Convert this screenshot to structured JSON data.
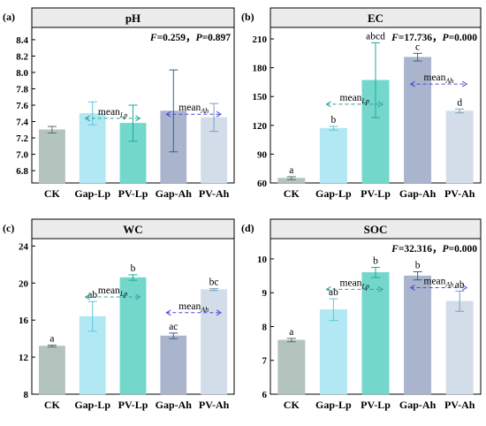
{
  "colors": {
    "CK": "#b3c3bd",
    "Gap-Lp": "#b1e8f3",
    "PV-Lp": "#73d7cb",
    "Gap-Ah": "#aab5cd",
    "PV-Ah": "#d3dde9",
    "err_CK": "#55706c",
    "err_Gap-Lp": "#5cc9dc",
    "err_PV-Lp": "#1dab9b",
    "err_Gap-Ah": "#3d5f8c",
    "err_PV-Ah": "#7c9fbc",
    "title_bar": "#ececec",
    "mean_Lp": "#2aa39a",
    "mean_Ah": "#4a4ad6"
  },
  "chart_data": [
    {
      "panel": "(a)",
      "type": "bar",
      "title": "pH",
      "categories": [
        "CK",
        "Gap-Lp",
        "PV-Lp",
        "Gap-Ah",
        "PV-Ah"
      ],
      "values": [
        7.3,
        7.5,
        7.38,
        7.53,
        7.45
      ],
      "errors": [
        0.04,
        0.14,
        0.22,
        0.5,
        0.17
      ],
      "letters": [
        "",
        "",
        "",
        "",
        ""
      ],
      "stat_F": "F",
      "stat_Fval": "=0.259，",
      "stat_P": "P",
      "stat_Pval": "=0.897",
      "mean_Lp": 7.44,
      "mean_Ah": 7.49,
      "ylim": [
        6.65,
        8.55
      ],
      "yticks": [
        6.8,
        7.0,
        7.2,
        7.4,
        7.6,
        7.8,
        8.0,
        8.2,
        8.4
      ],
      "ytick_labels": [
        "6.8",
        "7.0",
        "7.2",
        "7.4",
        "7.6",
        "7.8",
        "8.0",
        "8.2",
        "8.4"
      ]
    },
    {
      "panel": "(b)",
      "type": "bar",
      "title": "EC",
      "categories": [
        "CK",
        "Gap-Lp",
        "PV-Lp",
        "Gap-Ah",
        "PV-Ah"
      ],
      "values": [
        65,
        117,
        167,
        191,
        135
      ],
      "errors": [
        1.5,
        2,
        39,
        4,
        2
      ],
      "letters": [
        "a",
        "b",
        "abcd",
        "c",
        "d"
      ],
      "stat_F": "F",
      "stat_Fval": "=17.736，",
      "stat_P": "P",
      "stat_Pval": "=0.000",
      "mean_Lp": 142,
      "mean_Ah": 163,
      "ylim": [
        60,
        222
      ],
      "yticks": [
        60,
        90,
        120,
        150,
        180,
        210
      ],
      "ytick_labels": [
        "60",
        "90",
        "120",
        "150",
        "180",
        "210"
      ]
    },
    {
      "panel": "(c)",
      "type": "bar",
      "title": "WC",
      "categories": [
        "CK",
        "Gap-Lp",
        "PV-Lp",
        "Gap-Ah",
        "PV-Ah"
      ],
      "values": [
        13.2,
        16.4,
        20.6,
        14.3,
        19.3
      ],
      "errors": [
        0.1,
        1.6,
        0.3,
        0.3,
        0.1
      ],
      "letters": [
        "a",
        "ab",
        "b",
        "ac",
        "bc"
      ],
      "stat_F": "",
      "stat_Fval": "",
      "stat_P": "",
      "stat_Pval": "",
      "mean_Lp": 18.5,
      "mean_Ah": 16.8,
      "ylim": [
        8,
        24.8
      ],
      "yticks": [
        8,
        12,
        16,
        20,
        24
      ],
      "ytick_labels": [
        "8",
        "12",
        "16",
        "20",
        "24"
      ]
    },
    {
      "panel": "(d)",
      "type": "bar",
      "title": "SOC",
      "categories": [
        "CK",
        "Gap-Lp",
        "PV-Lp",
        "Gap-Ah",
        "PV-Ah"
      ],
      "values": [
        7.6,
        8.5,
        9.6,
        9.5,
        8.75
      ],
      "errors": [
        0.05,
        0.32,
        0.15,
        0.12,
        0.3
      ],
      "letters": [
        "a",
        "ab",
        "b",
        "b",
        "ab"
      ],
      "stat_F": "F",
      "stat_Fval": "=32.316，",
      "stat_P": "P",
      "stat_Pval": "=0.000",
      "mean_Lp": 9.1,
      "mean_Ah": 9.15,
      "ylim": [
        6,
        10.6
      ],
      "yticks": [
        6,
        7,
        8,
        9,
        10
      ],
      "ytick_labels": [
        "6",
        "7",
        "8",
        "9",
        "10"
      ]
    }
  ],
  "labels": {
    "mean_prefix": "mean",
    "mean_Lp_sub": "Lp",
    "mean_Ah_sub": "Ah"
  }
}
